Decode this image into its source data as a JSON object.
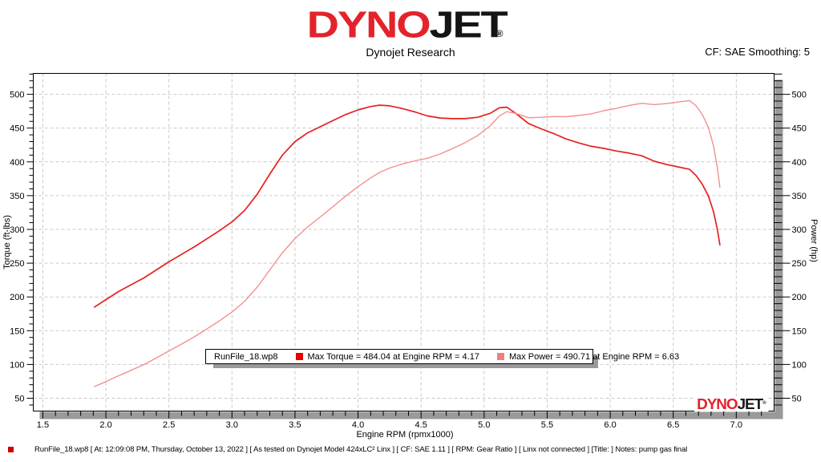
{
  "header": {
    "logo_part1": "DYNO",
    "logo_part2": "JET",
    "logo_registered": "®",
    "subtitle": "Dynojet Research",
    "cf_label": "CF: SAE Smoothing: 5",
    "brand_red": "#e3232a",
    "brand_black": "#151515"
  },
  "legend": {
    "file_label": "RunFile_18.wp8",
    "torque_label": "Max Torque = 484.04 at Engine RPM = 4.17",
    "power_label": "Max Power = 490.71 at Engine RPM = 6.63",
    "torque_swatch_color": "#e60000",
    "power_swatch_color": "#f08080"
  },
  "watermark": {
    "part1": "DYNO",
    "part2": "JET",
    "registered": "®"
  },
  "status_bar": {
    "marker_color": "#cc0000",
    "text": "RunFile_18.wp8 [ At: 12:09:08 PM, Thursday, October 13, 2022 ] [ As tested on Dynojet Model 424xLC² Linx ] [ CF: SAE 1.11 ] [ RPM: Gear Ratio ] [ Linx not connected ] [Title: ]  Notes: pump gas final"
  },
  "chart_data": {
    "type": "line",
    "title": "",
    "xlabel": "Engine RPM (rpmx1000)",
    "ylabel_left": "Torque (ft-lbs)",
    "ylabel_right": "Power (hp)",
    "xlim": [
      1.424,
      7.3
    ],
    "ylim": [
      31,
      531
    ],
    "x_ticks": [
      1.5,
      2.0,
      2.5,
      3.0,
      3.5,
      4.0,
      4.5,
      5.0,
      5.5,
      6.0,
      6.5,
      7.0
    ],
    "x_tick_labels": [
      "1.5",
      "2.0",
      "2.5",
      "3.0",
      "3.5",
      "4.0",
      "4.5",
      "5.0",
      "5.5",
      "6.0",
      "6.5",
      "7.0"
    ],
    "x_minor_step": 0.1,
    "y_ticks": [
      50,
      100,
      150,
      200,
      250,
      300,
      350,
      400,
      450,
      500
    ],
    "y_tick_labels": [
      "50",
      "100",
      "150",
      "200",
      "250",
      "300",
      "350",
      "400",
      "450",
      "500"
    ],
    "y_minor_step": 10,
    "grid": "dashed",
    "grid_color": "#c9c9c9",
    "legend_position": "bottom-center-inside",
    "max_torque": {
      "value": 484.04,
      "rpm": 4.17
    },
    "max_power": {
      "value": 490.71,
      "rpm": 6.63
    },
    "series": [
      {
        "name": "torque-ft-lbs",
        "color": "#e62020",
        "width": 1.7,
        "points": [
          [
            1.91,
            185
          ],
          [
            2.0,
            196
          ],
          [
            2.1,
            208
          ],
          [
            2.2,
            218
          ],
          [
            2.3,
            228
          ],
          [
            2.4,
            240
          ],
          [
            2.5,
            252
          ],
          [
            2.6,
            263
          ],
          [
            2.7,
            274
          ],
          [
            2.8,
            286
          ],
          [
            2.9,
            298
          ],
          [
            3.0,
            311
          ],
          [
            3.1,
            328
          ],
          [
            3.2,
            352
          ],
          [
            3.3,
            382
          ],
          [
            3.4,
            410
          ],
          [
            3.5,
            430
          ],
          [
            3.6,
            443
          ],
          [
            3.7,
            452
          ],
          [
            3.8,
            461
          ],
          [
            3.9,
            470
          ],
          [
            4.0,
            477
          ],
          [
            4.1,
            482
          ],
          [
            4.17,
            484
          ],
          [
            4.25,
            483
          ],
          [
            4.35,
            479
          ],
          [
            4.45,
            474
          ],
          [
            4.55,
            468
          ],
          [
            4.65,
            465
          ],
          [
            4.75,
            464
          ],
          [
            4.85,
            464
          ],
          [
            4.95,
            466
          ],
          [
            5.05,
            472
          ],
          [
            5.12,
            480
          ],
          [
            5.18,
            481
          ],
          [
            5.25,
            472
          ],
          [
            5.35,
            457
          ],
          [
            5.45,
            449
          ],
          [
            5.55,
            442
          ],
          [
            5.65,
            434
          ],
          [
            5.75,
            428
          ],
          [
            5.85,
            423
          ],
          [
            5.95,
            420
          ],
          [
            6.05,
            416
          ],
          [
            6.15,
            413
          ],
          [
            6.25,
            409
          ],
          [
            6.35,
            401
          ],
          [
            6.45,
            396
          ],
          [
            6.55,
            392
          ],
          [
            6.63,
            389
          ],
          [
            6.68,
            380
          ],
          [
            6.73,
            367
          ],
          [
            6.78,
            349
          ],
          [
            6.82,
            326
          ],
          [
            6.85,
            300
          ],
          [
            6.87,
            277
          ]
        ]
      },
      {
        "name": "power-hp",
        "color": "#f49090",
        "width": 1.4,
        "points": [
          [
            1.91,
            67.3
          ],
          [
            2.0,
            74.6
          ],
          [
            2.1,
            83.2
          ],
          [
            2.2,
            91.3
          ],
          [
            2.3,
            99.8
          ],
          [
            2.4,
            109.7
          ],
          [
            2.5,
            119.9
          ],
          [
            2.6,
            130.2
          ],
          [
            2.7,
            140.9
          ],
          [
            2.8,
            152.5
          ],
          [
            2.9,
            164.5
          ],
          [
            3.0,
            177.6
          ],
          [
            3.1,
            193.6
          ],
          [
            3.2,
            214.5
          ],
          [
            3.3,
            240.0
          ],
          [
            3.4,
            265.4
          ],
          [
            3.5,
            286.5
          ],
          [
            3.6,
            303.7
          ],
          [
            3.7,
            318.4
          ],
          [
            3.8,
            333.5
          ],
          [
            3.9,
            349.0
          ],
          [
            4.0,
            363.3
          ],
          [
            4.1,
            376.3
          ],
          [
            4.17,
            384.3
          ],
          [
            4.25,
            390.8
          ],
          [
            4.35,
            396.7
          ],
          [
            4.45,
            401.6
          ],
          [
            4.55,
            405.4
          ],
          [
            4.65,
            411.7
          ],
          [
            4.75,
            419.6
          ],
          [
            4.85,
            428.5
          ],
          [
            4.95,
            439.1
          ],
          [
            5.05,
            453.8
          ],
          [
            5.12,
            467.9
          ],
          [
            5.18,
            474.4
          ],
          [
            5.25,
            471.8
          ],
          [
            5.35,
            465.5
          ],
          [
            5.45,
            465.9
          ],
          [
            5.55,
            467.1
          ],
          [
            5.65,
            466.9
          ],
          [
            5.75,
            468.6
          ],
          [
            5.85,
            471.1
          ],
          [
            5.95,
            475.8
          ],
          [
            6.05,
            479.2
          ],
          [
            6.15,
            483.6
          ],
          [
            6.25,
            486.7
          ],
          [
            6.35,
            484.8
          ],
          [
            6.45,
            486.3
          ],
          [
            6.55,
            488.9
          ],
          [
            6.63,
            490.7
          ],
          [
            6.68,
            483.3
          ],
          [
            6.73,
            470.3
          ],
          [
            6.78,
            450.5
          ],
          [
            6.82,
            423.3
          ],
          [
            6.85,
            391.3
          ],
          [
            6.87,
            362.3
          ]
        ]
      }
    ]
  }
}
